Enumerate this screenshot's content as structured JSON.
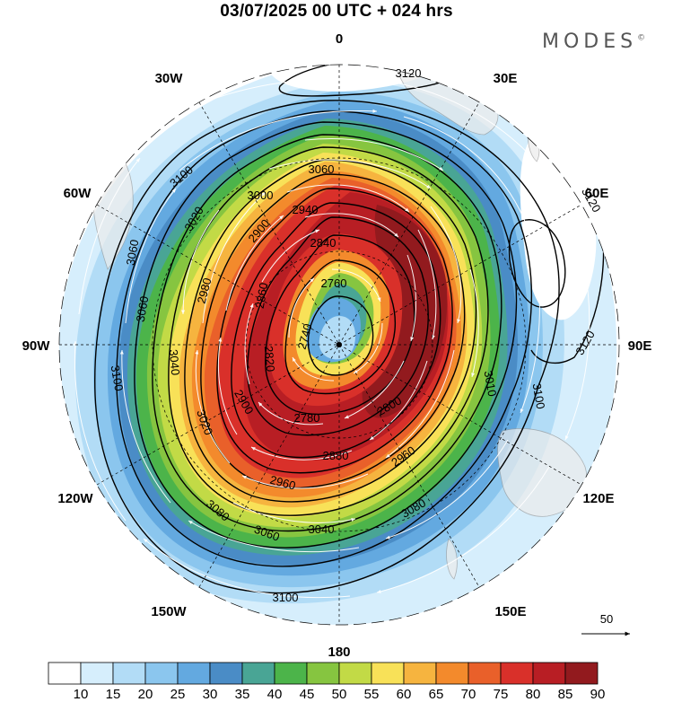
{
  "header": {
    "title": "03/07/2025  00 UTC  + 024 hrs",
    "brand": "MODES",
    "brand_mark": "©"
  },
  "map": {
    "projection": "south-polar-stereographic",
    "center": "South Pole",
    "longitude_labels": [
      "0",
      "30E",
      "60E",
      "90E",
      "120E",
      "150E",
      "180",
      "150W",
      "120W",
      "90W",
      "60W",
      "30W"
    ],
    "shading_quantity": "wind speed",
    "contour_labels": [
      {
        "text": "3120"
      },
      {
        "text": "3120"
      },
      {
        "text": "3120"
      },
      {
        "text": "3100"
      },
      {
        "text": "3100"
      },
      {
        "text": "3100"
      },
      {
        "text": "3100"
      },
      {
        "text": "3080"
      },
      {
        "text": "3080"
      },
      {
        "text": "3060"
      },
      {
        "text": "3060"
      },
      {
        "text": "3060"
      },
      {
        "text": "3060"
      },
      {
        "text": "3040"
      },
      {
        "text": "3040"
      },
      {
        "text": "3020"
      },
      {
        "text": "3020"
      },
      {
        "text": "3000"
      },
      {
        "text": "2980"
      },
      {
        "text": "2960"
      },
      {
        "text": "2960"
      },
      {
        "text": "2940"
      },
      {
        "text": "2900"
      },
      {
        "text": "2900"
      },
      {
        "text": "2880"
      },
      {
        "text": "2860"
      },
      {
        "text": "2840"
      },
      {
        "text": "2820"
      },
      {
        "text": "2800"
      },
      {
        "text": "2780"
      },
      {
        "text": "2760"
      },
      {
        "text": "2740"
      },
      {
        "text": "3010"
      }
    ],
    "vector_reference": {
      "label": "50"
    }
  },
  "colorbar": {
    "labels": [
      "10",
      "15",
      "20",
      "25",
      "30",
      "35",
      "40",
      "45",
      "50",
      "55",
      "60",
      "65",
      "70",
      "75",
      "80",
      "85",
      "90"
    ],
    "colors": [
      "#ffffff",
      "#d6eefc",
      "#b2dcf6",
      "#8bc6ee",
      "#63a9e0",
      "#4a8cc6",
      "#49a595",
      "#4cb44a",
      "#86c540",
      "#c2da46",
      "#f8e158",
      "#f6b43f",
      "#f38a2c",
      "#e9602a",
      "#d9302a",
      "#b81e24",
      "#921a1e"
    ]
  }
}
